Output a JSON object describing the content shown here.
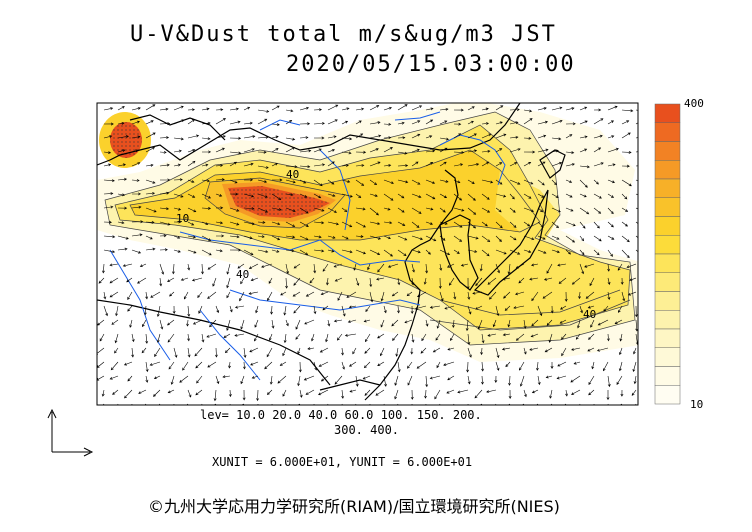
{
  "title": "U-V&Dust total m/s&ug/m3 JST",
  "datetime": "2020/05/15.03:00:00",
  "levels_line1": "lev= 10.0 20.0 40.0 60.0 100. 150. 200.",
  "levels_line2": "300. 400.",
  "units_line": "XUNIT = 6.000E+01, YUNIT = 6.000E+01",
  "credit": "©九州大学応用力学研究所(RIAM)/国立環境研究所(NIES)",
  "colorbar": {
    "max_label": "400",
    "min_label": "10",
    "colors": [
      "#e8501e",
      "#ee6a22",
      "#f28224",
      "#f59a26",
      "#f7b028",
      "#f9c22a",
      "#fbd12c",
      "#fcdc3a",
      "#fde45a",
      "#fdea78",
      "#fdef95",
      "#fdf3ae",
      "#fef6c4",
      "#fef9d7",
      "#fffbe6",
      "#fffdf2"
    ]
  },
  "contour_labels": [
    "40",
    "10",
    "40",
    "40"
  ],
  "colors": {
    "coast": "#000000",
    "river": "#1a5ee8",
    "wind_arrow": "#000000"
  }
}
